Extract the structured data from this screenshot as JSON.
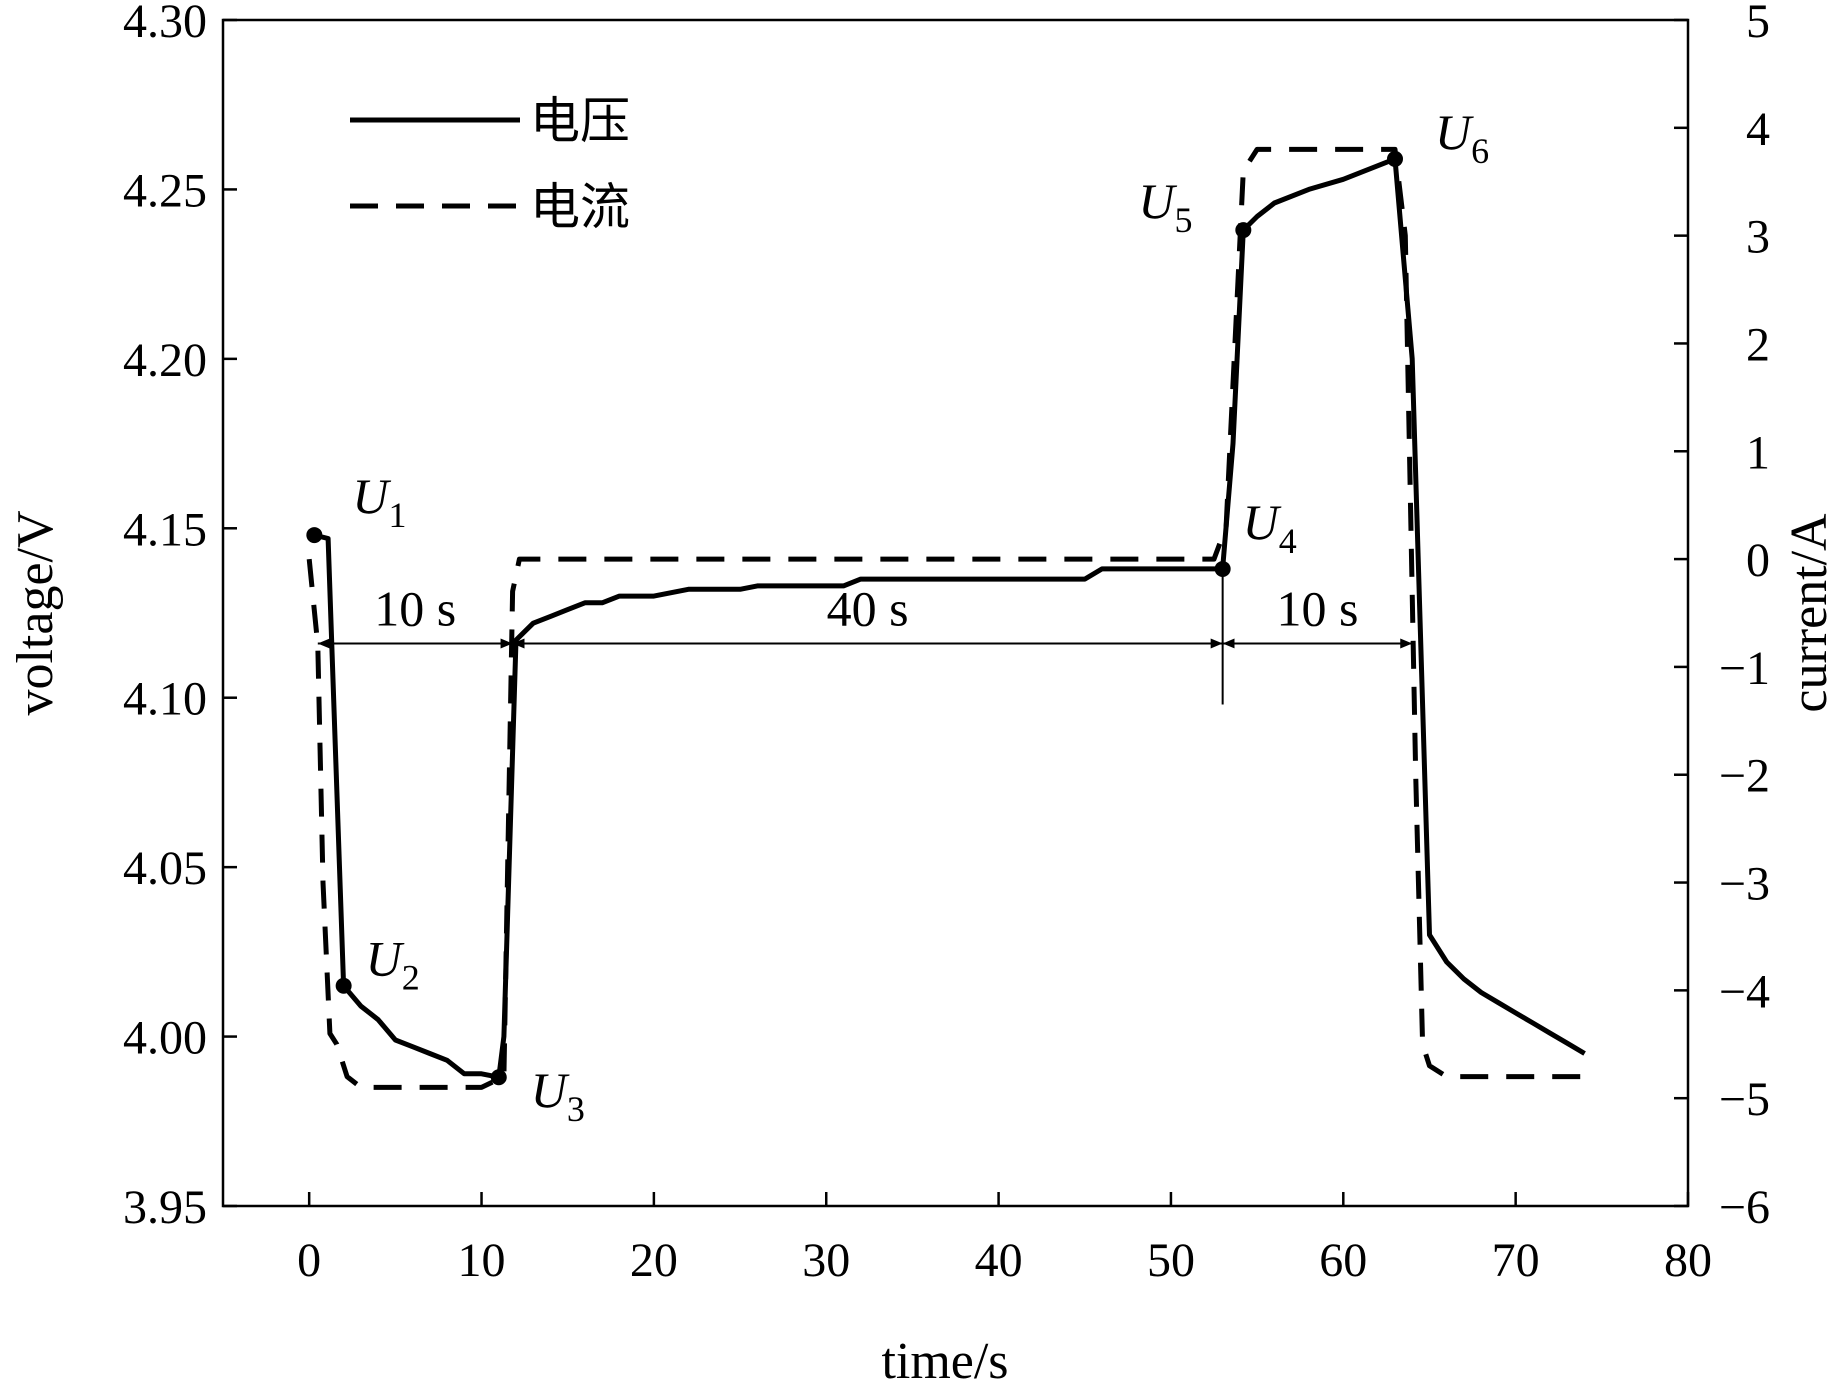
{
  "chart_data": {
    "type": "line",
    "xlabel": "time/s",
    "ylabel": "voltage/V",
    "y2label": "current/A",
    "xlim": [
      -5,
      80
    ],
    "ylim": [
      3.95,
      4.3
    ],
    "y2lim": [
      -6,
      5
    ],
    "xticks": [
      "0",
      "10",
      "20",
      "30",
      "40",
      "50",
      "60",
      "70",
      "80"
    ],
    "yticks": [
      "3.95",
      "4.00",
      "4.05",
      "4.10",
      "4.15",
      "4.20",
      "4.25",
      "4.30"
    ],
    "y2ticks": [
      "−6",
      "−5",
      "−4",
      "−3",
      "−2",
      "−1",
      "0",
      "1",
      "2",
      "3",
      "4",
      "5"
    ],
    "grid": false,
    "legend_position": "top-left",
    "series": [
      {
        "name": "电压",
        "axis": "left",
        "style": "solid",
        "x": [
          0.3,
          1.1,
          2.0,
          3.0,
          4.0,
          5.0,
          6.0,
          7.0,
          8.0,
          9.0,
          10.0,
          11.0,
          11.3,
          12.0,
          13.0,
          14.0,
          15.0,
          16.0,
          17.0,
          18.0,
          20.0,
          22.0,
          25.0,
          26.0,
          29.0,
          31.0,
          32.0,
          40.0,
          45.0,
          46.0,
          50.0,
          53.0,
          53.6,
          54.2,
          55.0,
          56.0,
          58.0,
          60.0,
          63.0,
          64.0,
          65.0,
          66.0,
          67.0,
          68.0,
          69.0,
          70.0,
          71.0,
          72.0,
          73.0,
          74.0
        ],
        "y": [
          4.148,
          4.147,
          4.015,
          4.009,
          4.005,
          3.999,
          3.997,
          3.995,
          3.993,
          3.989,
          3.989,
          3.988,
          4.0,
          4.117,
          4.122,
          4.124,
          4.126,
          4.128,
          4.128,
          4.13,
          4.13,
          4.132,
          4.132,
          4.133,
          4.133,
          4.133,
          4.135,
          4.135,
          4.135,
          4.138,
          4.138,
          4.138,
          4.175,
          4.238,
          4.242,
          4.246,
          4.25,
          4.253,
          4.259,
          4.2,
          4.03,
          4.022,
          4.017,
          4.013,
          4.01,
          4.007,
          4.004,
          4.001,
          3.998,
          3.995
        ]
      },
      {
        "name": "电流",
        "axis": "right",
        "style": "dashed",
        "x": [
          0.0,
          0.5,
          0.8,
          1.2,
          1.6,
          2.2,
          3.0,
          4.0,
          6.0,
          8.0,
          10.0,
          11.3,
          11.8,
          12.2,
          15.0,
          30.0,
          45.0,
          51.0,
          52.5,
          53.2,
          54.2,
          55.0,
          60.0,
          63.0,
          63.6,
          64.2,
          64.6,
          65.0,
          66.0,
          70.0,
          74.0
        ],
        "y": [
          0.0,
          -0.8,
          -3.0,
          -4.4,
          -4.5,
          -4.8,
          -4.9,
          -4.9,
          -4.9,
          -4.9,
          -4.9,
          -4.8,
          -0.3,
          0.0,
          0.0,
          0.0,
          0.0,
          0.0,
          0.0,
          0.3,
          3.6,
          3.8,
          3.8,
          3.8,
          3.0,
          -2.0,
          -4.5,
          -4.7,
          -4.8,
          -4.8,
          -4.8
        ]
      }
    ],
    "points": [
      {
        "label": "U",
        "sub": "1",
        "x": 0.3,
        "y": 4.148
      },
      {
        "label": "U",
        "sub": "2",
        "x": 2.0,
        "y": 4.015
      },
      {
        "label": "U",
        "sub": "3",
        "x": 11.0,
        "y": 3.988
      },
      {
        "label": "U",
        "sub": "4",
        "x": 53.0,
        "y": 4.138
      },
      {
        "label": "U",
        "sub": "5",
        "x": 54.2,
        "y": 4.238
      },
      {
        "label": "U",
        "sub": "6",
        "x": 63.0,
        "y": 4.259
      }
    ],
    "spans": [
      {
        "label": "10 s",
        "x0": 0.5,
        "x1": 11.8,
        "y": 4.116
      },
      {
        "label": "40 s",
        "x0": 11.8,
        "x1": 53.0,
        "y": 4.116
      },
      {
        "label": "10 s",
        "x0": 53.0,
        "x1": 64.0,
        "y": 4.116
      }
    ]
  }
}
